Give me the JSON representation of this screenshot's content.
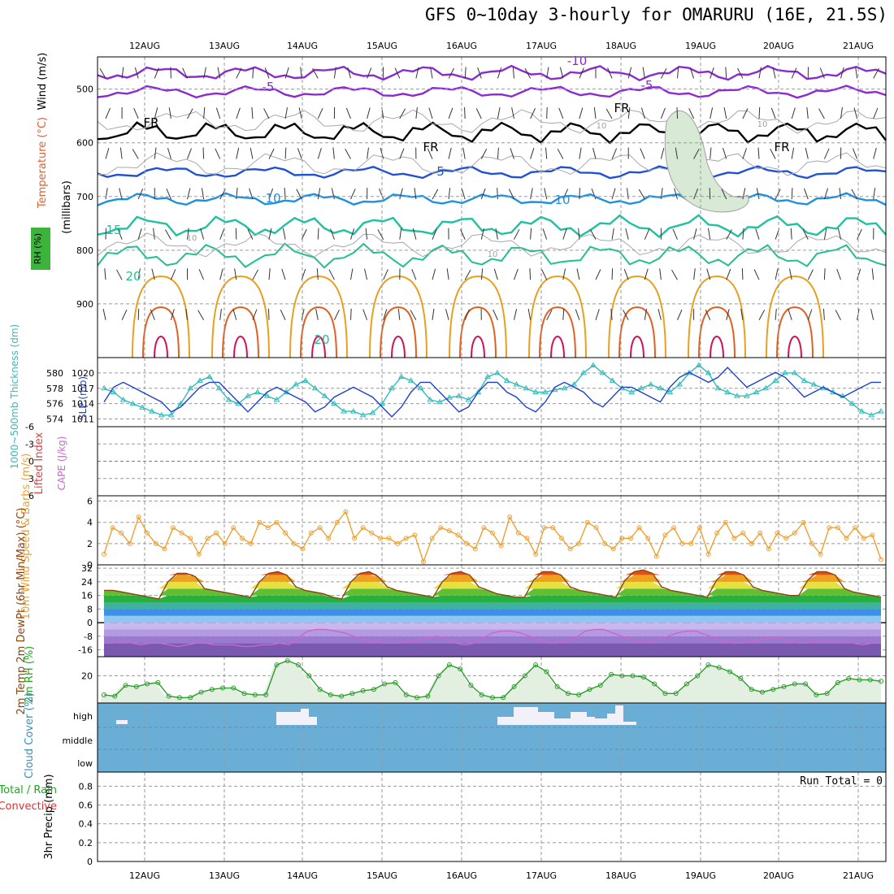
{
  "title": "GFS 0~10day 3-hourly for OMARURU (16E, 21.5S)",
  "dates": [
    "12AUG",
    "13AUG",
    "14AUG",
    "15AUG",
    "16AUG",
    "17AUG",
    "18AUG",
    "19AUG",
    "20AUG",
    "21AUG"
  ],
  "chart_data": [
    {
      "type": "line",
      "panel": "upper-air",
      "ylabel_parts": [
        "Wind (m/s)",
        "Temperature (°C)",
        "(millibars)",
        "RH (%)"
      ],
      "y_ticks": [
        "500",
        "600",
        "700",
        "800",
        "900"
      ],
      "ylim": [
        1000,
        440
      ],
      "contour_labels": [
        "-10",
        "-5",
        "-5",
        "FR",
        "FR",
        "FR",
        "FR",
        "5",
        "10",
        "10",
        "15",
        "20",
        "20",
        "10",
        "10",
        "10",
        "10"
      ],
      "temperature_isotherms_c": [
        -10,
        -5,
        0,
        5,
        10,
        15,
        20,
        25,
        30
      ]
    },
    {
      "type": "line",
      "panel": "thickness-slp",
      "ylabel_left": "1000~500mb Thickness (dm)",
      "ylabel_right": "SLP (mb)",
      "left_ticks": [
        "580",
        "578",
        "576",
        "574"
      ],
      "right_ticks": [
        "1020",
        "1017",
        "1014",
        "1011"
      ],
      "series": [
        {
          "name": "1000~500mb Thickness (dm)",
          "color": "#33bbbb",
          "values": [
            578,
            577.5,
            576.5,
            576,
            575.5,
            575,
            574.5,
            574.5,
            576,
            578,
            579,
            579.5,
            578,
            576.5,
            576,
            577,
            577.5,
            577,
            576.5,
            577.5,
            578.5,
            579,
            578,
            577,
            576,
            575,
            575,
            574.5,
            574.8,
            576,
            578,
            579.5,
            579,
            578,
            576.5,
            576.2,
            576.8,
            577,
            576.5,
            577.5,
            579.5,
            580,
            579,
            578.5,
            578,
            577.5,
            577.5,
            577.8,
            578,
            578.5,
            580,
            581,
            580,
            579,
            578,
            577.5,
            578,
            578.5,
            578,
            577.5,
            578.5,
            580,
            581,
            580,
            578,
            577.5,
            577,
            577,
            577.5,
            578,
            579,
            580,
            580,
            579,
            578.5,
            578,
            577.5,
            577,
            576,
            575,
            574.5,
            575
          ]
        },
        {
          "name": "SLP (mb)",
          "color": "#1f3fd0",
          "values": [
            1014,
            1017,
            1018,
            1017,
            1016,
            1015,
            1014,
            1012,
            1013,
            1015,
            1017,
            1018,
            1018,
            1016,
            1014,
            1012,
            1014,
            1016,
            1017,
            1016,
            1015,
            1014,
            1012,
            1013,
            1015,
            1016,
            1017,
            1016,
            1015,
            1013,
            1011,
            1013,
            1016,
            1018,
            1018,
            1016,
            1014,
            1012,
            1013,
            1016,
            1018,
            1018,
            1016,
            1015,
            1013,
            1012,
            1014,
            1017,
            1018,
            1017,
            1016,
            1014,
            1013,
            1015,
            1017,
            1017,
            1016,
            1015,
            1014,
            1017,
            1019,
            1020,
            1019,
            1018,
            1019,
            1021,
            1019,
            1017,
            1018,
            1019,
            1020,
            1019,
            1017,
            1015,
            1016,
            1017,
            1016,
            1015,
            1016,
            1017,
            1018,
            1018
          ]
        }
      ]
    },
    {
      "type": "line",
      "panel": "lifted-index-cape",
      "ylabel_left": "Lifted Index",
      "ylabel_right": "CAPE (J/kg)",
      "y_ticks": [
        "-6",
        "-3",
        "0",
        "3",
        "6"
      ],
      "ylim": [
        6,
        -6
      ],
      "series": [
        {
          "name": "Lifted Index",
          "color": "#e03030",
          "values": []
        }
      ]
    },
    {
      "type": "line",
      "panel": "10m-wind",
      "ylabel": "10m Wind Speed & Barbs (m/s)",
      "y_ticks": [
        "0",
        "2",
        "4",
        "6"
      ],
      "ylim": [
        0,
        6.5
      ],
      "series": [
        {
          "name": "10m Wind Speed",
          "color": "#f0a030",
          "values": [
            1,
            3.5,
            3,
            2,
            4.5,
            3,
            2,
            1.5,
            3.5,
            3,
            2.5,
            1,
            2.5,
            3,
            2,
            3.5,
            2.5,
            2,
            4,
            3.5,
            4,
            3,
            2,
            1.5,
            3,
            3.5,
            2.5,
            4,
            5,
            2.5,
            3.5,
            3,
            2.5,
            2.5,
            2,
            2.5,
            2.8,
            0.3,
            2.5,
            3.5,
            3.2,
            2.8,
            2,
            1.5,
            3.5,
            3,
            1.8,
            4.5,
            3,
            2.5,
            1,
            3.5,
            3.5,
            2.5,
            1.5,
            2,
            4,
            3.5,
            2,
            1.5,
            2.5,
            2.5,
            3.5,
            2.5,
            0.8,
            2.8,
            3.5,
            2,
            2,
            3.5,
            1,
            3,
            4,
            2.5,
            3,
            2,
            3,
            1.5,
            3,
            2.5,
            3,
            4,
            2,
            1,
            3.5,
            3.5,
            2.5,
            3.5,
            2.5,
            2.8,
            0.5
          ]
        }
      ]
    },
    {
      "type": "area",
      "panel": "2m-temp",
      "ylabel": "2m Temp 2m DewPt (6hr Min/Max) (°C)",
      "y_ticks": [
        "32",
        "24",
        "16",
        "8",
        "0",
        "-8",
        "-16"
      ],
      "ylim": [
        -20,
        34
      ],
      "series": [
        {
          "name": "2m Temp",
          "color": "#8b4513",
          "values": [
            19,
            19,
            18,
            17,
            16,
            15,
            14,
            24,
            29,
            29,
            27,
            20,
            19,
            18,
            17,
            16,
            15,
            24,
            29,
            30,
            28,
            21,
            19,
            18,
            17,
            15,
            14,
            24,
            29,
            30,
            27,
            21,
            19,
            18,
            17,
            16,
            15,
            24,
            29,
            30,
            28,
            21,
            19,
            17,
            16,
            15,
            15,
            25,
            30,
            30,
            28,
            21,
            19,
            18,
            17,
            16,
            15,
            25,
            30,
            31,
            29,
            21,
            19,
            18,
            17,
            16,
            15,
            25,
            30,
            30,
            28,
            21,
            19,
            18,
            17,
            16,
            16,
            25,
            30,
            30,
            28,
            20,
            18,
            17,
            16,
            15
          ]
        },
        {
          "name": "2m DewPt",
          "color": "#cc66cc",
          "values": [
            -12,
            -12,
            -11,
            -12,
            -13,
            -12,
            -12,
            -13,
            -14,
            -13,
            -12,
            -12,
            -13,
            -13,
            -13,
            -14,
            -14,
            -13,
            -13,
            -12,
            -13,
            -9,
            -5,
            -4,
            -4,
            -5,
            -6,
            -8,
            -10,
            -11,
            -12,
            -12,
            -12,
            -11,
            -10,
            -9,
            -8,
            -9,
            -12,
            -13,
            -12,
            -9,
            -6,
            -5,
            -5,
            -6,
            -8,
            -10,
            -12,
            -12,
            -11,
            -9,
            -5,
            -4,
            -4,
            -6,
            -8,
            -10,
            -12,
            -11,
            -10,
            -8,
            -6,
            -5,
            -5,
            -7,
            -9,
            -11,
            -12,
            -12,
            -11,
            -10,
            -9,
            -9,
            -11,
            -12,
            -12,
            -11,
            -11,
            -11,
            -11,
            -12,
            -13,
            -12,
            -12
          ]
        }
      ]
    },
    {
      "type": "area",
      "panel": "2m-rh",
      "ylabel": "2m RH (%)",
      "y_ticks": [
        "20"
      ],
      "ylim": [
        0,
        34
      ],
      "series": [
        {
          "name": "2m RH",
          "color": "#2f9c2f",
          "values": [
            6,
            5,
            13,
            12,
            14,
            15,
            5,
            4,
            4,
            8,
            10,
            11,
            11,
            7,
            6,
            6,
            28,
            31,
            28,
            20,
            10,
            6,
            5,
            7,
            9,
            10,
            14,
            15,
            6,
            4,
            5,
            20,
            28,
            25,
            13,
            6,
            4,
            4,
            12,
            20,
            28,
            23,
            12,
            7,
            6,
            10,
            13,
            21,
            20,
            20,
            19,
            14,
            7,
            7,
            14,
            20,
            28,
            26,
            23,
            18,
            10,
            8,
            10,
            12,
            14,
            14,
            6,
            7,
            15,
            18,
            17,
            17,
            16
          ]
        }
      ]
    },
    {
      "type": "heatmap",
      "panel": "cloud-cover",
      "ylabel": "Cloud Cover (%)",
      "levels": [
        "high",
        "middle",
        "low"
      ]
    },
    {
      "type": "bar",
      "panel": "precip",
      "ylabel": "3hr Precip (mm)",
      "ylabel_left": "Total / Rain",
      "ylabel_left2": "Convective",
      "run_total": "Run Total = 0",
      "y_ticks": [
        "0",
        "0.2",
        "0.4",
        "0.6",
        "0.8"
      ],
      "ylim": [
        0,
        0.95
      ],
      "values": []
    }
  ],
  "colors": {
    "grid": "#9a9a9a",
    "cloud_bg": "#6aaed6",
    "rh_fill": "#e3efe0",
    "rh_green_label": "#1aab1a",
    "thickness": "#33bbbb",
    "slp": "#1f3fd0",
    "wind": "#f0a030"
  }
}
